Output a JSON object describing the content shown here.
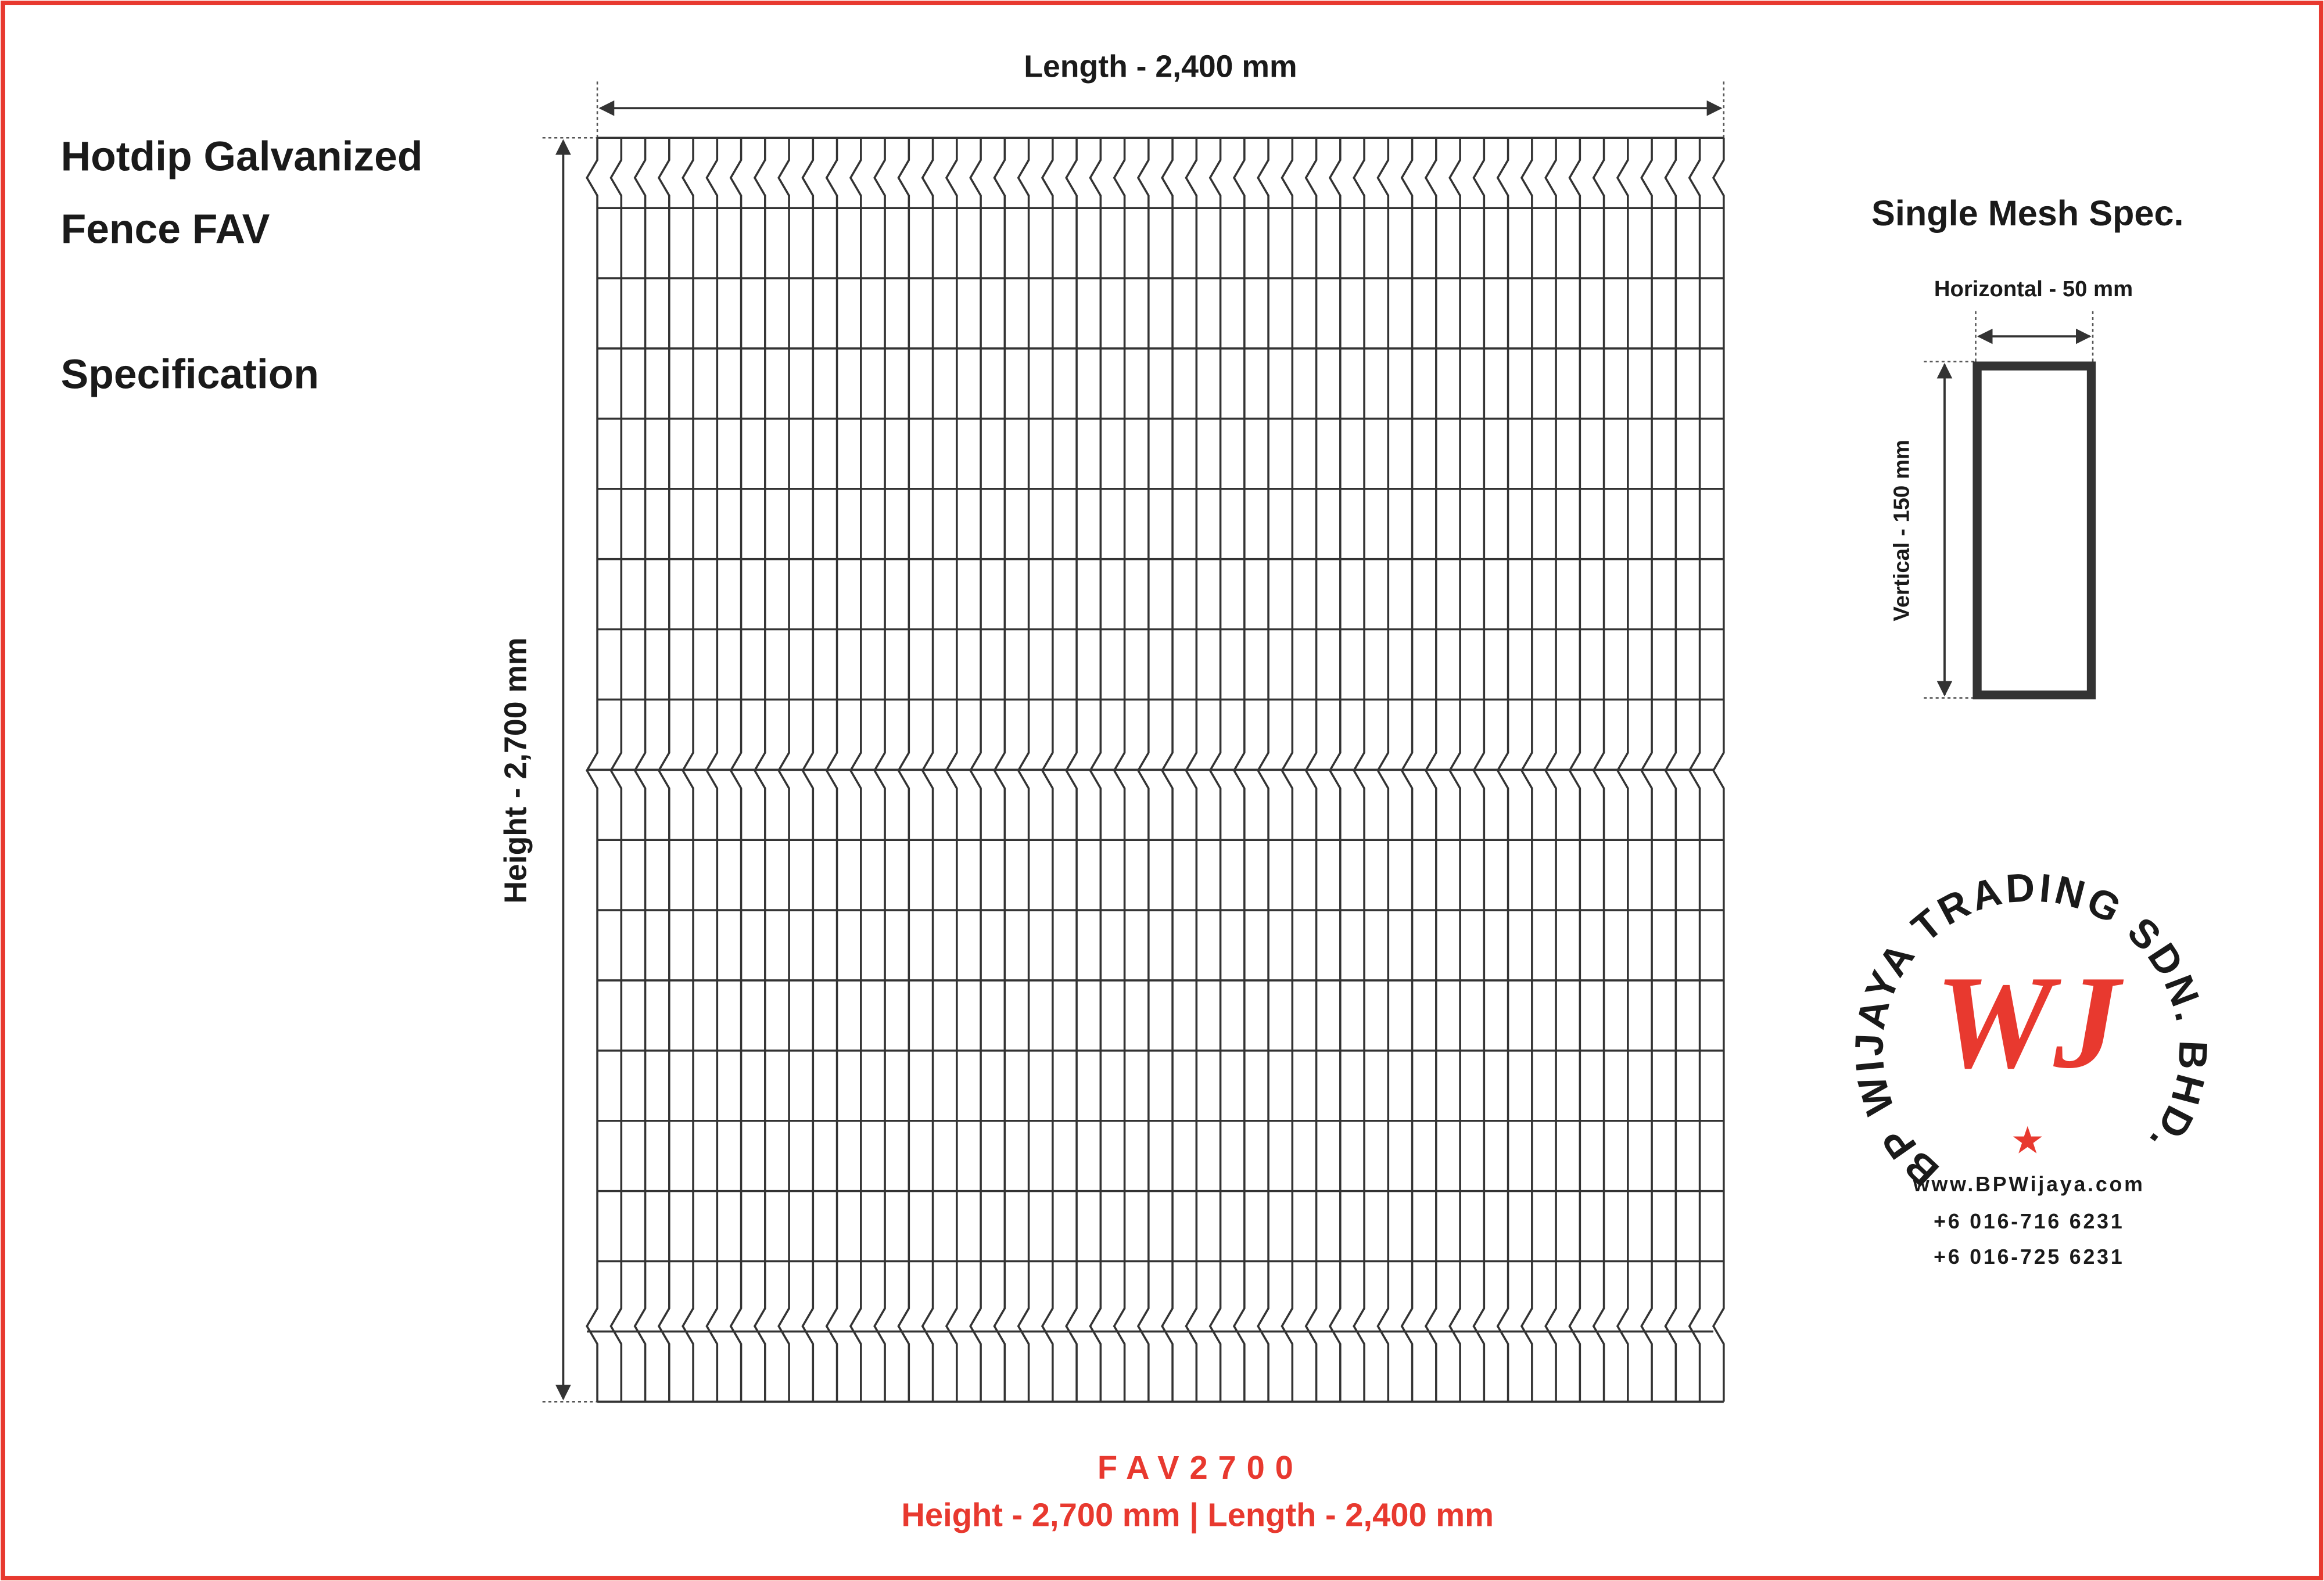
{
  "title": {
    "line1": "Hotdip Galvanized",
    "line2": "Fence FAV",
    "subtitle": "Specification"
  },
  "dimensions": {
    "length": "Length - 2,400 mm",
    "height": "Height - 2,700 mm"
  },
  "mesh_spec": {
    "title": "Single Mesh Spec.",
    "horizontal": "Horizontal - 50 mm",
    "vertical": "Vertical - 150 mm"
  },
  "logo": {
    "ring_text": "BP WIJAYA TRADING SDN. BHD.",
    "monogram": "WJ"
  },
  "contact": {
    "website": "www.BPWijaya.com",
    "phone1": "+6 016-716 6231",
    "phone2": "+6 016-725 6231"
  },
  "footer": {
    "model": "FAV2700",
    "summary": "Height - 2,700 mm | Length - 2,400 mm"
  }
}
